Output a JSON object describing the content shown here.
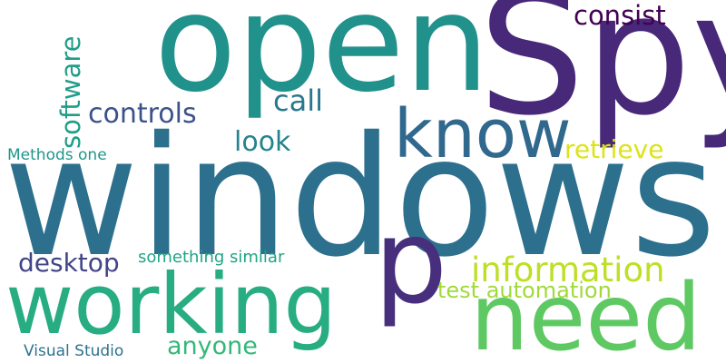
{
  "words": [
    {
      "text": "windows",
      "color": "#2d708e",
      "orientation": "horizontal"
    },
    {
      "text": "open",
      "color": "#21918c",
      "orientation": "horizontal"
    },
    {
      "text": "Spy",
      "color": "#482878",
      "orientation": "horizontal"
    },
    {
      "text": "working",
      "color": "#27ad81",
      "orientation": "horizontal"
    },
    {
      "text": "need",
      "color": "#5ec962",
      "orientation": "horizontal"
    },
    {
      "text": "p",
      "color": "#472f7d",
      "orientation": "horizontal"
    },
    {
      "text": "know",
      "color": "#31688e",
      "orientation": "horizontal"
    },
    {
      "text": "information",
      "color": "#bddf26",
      "orientation": "horizontal"
    },
    {
      "text": "consist",
      "color": "#440154",
      "orientation": "horizontal"
    },
    {
      "text": "controls",
      "color": "#3b528b",
      "orientation": "horizontal"
    },
    {
      "text": "call",
      "color": "#2a788e",
      "orientation": "horizontal"
    },
    {
      "text": "look",
      "color": "#25838e",
      "orientation": "horizontal"
    },
    {
      "text": "retrieve",
      "color": "#dde318",
      "orientation": "horizontal"
    },
    {
      "text": "software",
      "color": "#1f9e89",
      "orientation": "vertical"
    },
    {
      "text": "desktop",
      "color": "#414487",
      "orientation": "horizontal"
    },
    {
      "text": "anyone",
      "color": "#35b779",
      "orientation": "horizontal"
    },
    {
      "text": "test automation",
      "color": "#a0da39",
      "orientation": "horizontal"
    },
    {
      "text": "something similar",
      "color": "#20a486",
      "orientation": "horizontal"
    },
    {
      "text": "Methods one",
      "color": "#1f968b",
      "orientation": "horizontal"
    },
    {
      "text": "Visual Studio",
      "color": "#2c728e",
      "orientation": "horizontal"
    }
  ]
}
